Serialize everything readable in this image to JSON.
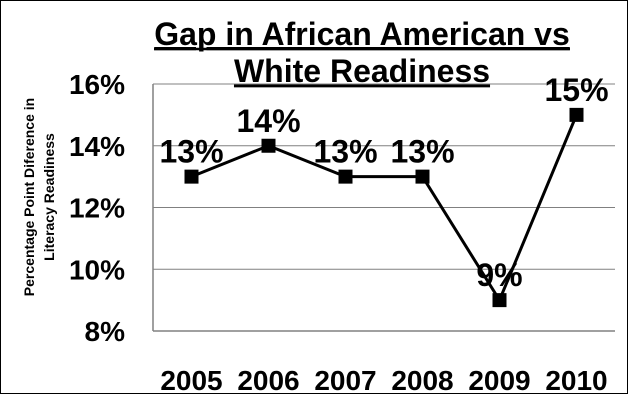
{
  "chart_data": {
    "type": "line",
    "title_line1": "Gap in African American vs",
    "title_line2": "White Readiness",
    "ylabel_line1": "Percentage Point Diference in",
    "ylabel_line2": "Literacy Readiness",
    "categories": [
      "2005",
      "2006",
      "2007",
      "2008",
      "2009",
      "2010"
    ],
    "values": [
      13,
      14,
      13,
      13,
      9,
      15
    ],
    "data_labels": [
      "13%",
      "14%",
      "13%",
      "13%",
      "9%",
      "15%"
    ],
    "y_ticks": [
      "8%",
      "10%",
      "12%",
      "14%",
      "16%"
    ],
    "ylim": [
      8,
      16
    ],
    "grid": true,
    "line_color": "#000000",
    "grid_color": "#808080"
  }
}
